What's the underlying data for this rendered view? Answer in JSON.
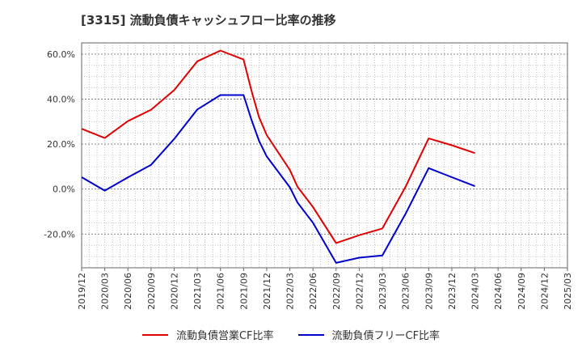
{
  "chart_data": {
    "type": "line",
    "title": "[3315]  流動負債キャッシュフロー比率の推移",
    "x": [
      "2019/12",
      "2020/03",
      "2020/06",
      "2020/09",
      "2020/12",
      "2021/03",
      "2021/06",
      "2021/09",
      "2021/12",
      "2022/03",
      "2022/06",
      "2022/09",
      "2022/12",
      "2023/03",
      "2023/06",
      "2023/09",
      "2023/12",
      "2024/03",
      "2024/06",
      "2024/09",
      "2024/12",
      "2025/03"
    ],
    "ylim": [
      -35,
      65
    ],
    "yticks": [
      60,
      40,
      20,
      0,
      -20
    ],
    "ytick_labels": [
      "60.0%",
      "40.0%",
      "20.0%",
      "0.0%",
      "-20.0%"
    ],
    "grid": true,
    "legend_position": "bottom",
    "series": [
      {
        "name": "流動負債営業CF比率",
        "color": "#e00000",
        "points": [
          [
            "2019/12",
            26.8
          ],
          [
            "2020/03",
            22.7
          ],
          [
            "2020/06",
            30.2
          ],
          [
            "2020/09",
            35.3
          ],
          [
            "2020/12",
            44.0
          ],
          [
            "2021/03",
            56.8
          ],
          [
            "2021/06",
            61.6
          ],
          [
            "2021/09",
            57.6
          ],
          [
            "2021/10",
            44.0
          ],
          [
            "2021/11",
            32.0
          ],
          [
            "2021/12",
            24.0
          ],
          [
            "2022/03",
            8.5
          ],
          [
            "2022/04",
            1.0
          ],
          [
            "2022/06",
            -8.0
          ],
          [
            "2022/09",
            -24.0
          ],
          [
            "2022/12",
            -20.5
          ],
          [
            "2023/03",
            -17.5
          ],
          [
            "2023/06",
            1.0
          ],
          [
            "2023/09",
            22.5
          ],
          [
            "2023/12",
            19.5
          ],
          [
            "2024/03",
            16.0
          ]
        ]
      },
      {
        "name": "流動負債フリーCF比率",
        "color": "#0000cc",
        "points": [
          [
            "2019/12",
            5.3
          ],
          [
            "2020/03",
            -0.7
          ],
          [
            "2020/06",
            5.2
          ],
          [
            "2020/09",
            10.8
          ],
          [
            "2020/12",
            22.3
          ],
          [
            "2021/03",
            35.4
          ],
          [
            "2021/06",
            41.8
          ],
          [
            "2021/09",
            41.8
          ],
          [
            "2021/10",
            31.0
          ],
          [
            "2021/11",
            21.5
          ],
          [
            "2021/12",
            14.5
          ],
          [
            "2022/03",
            0.8
          ],
          [
            "2022/04",
            -6.0
          ],
          [
            "2022/06",
            -15.0
          ],
          [
            "2022/09",
            -32.8
          ],
          [
            "2022/12",
            -30.5
          ],
          [
            "2023/03",
            -29.5
          ],
          [
            "2023/06",
            -11.0
          ],
          [
            "2023/09",
            9.3
          ],
          [
            "2023/12",
            5.3
          ],
          [
            "2024/03",
            1.3
          ]
        ]
      }
    ]
  }
}
